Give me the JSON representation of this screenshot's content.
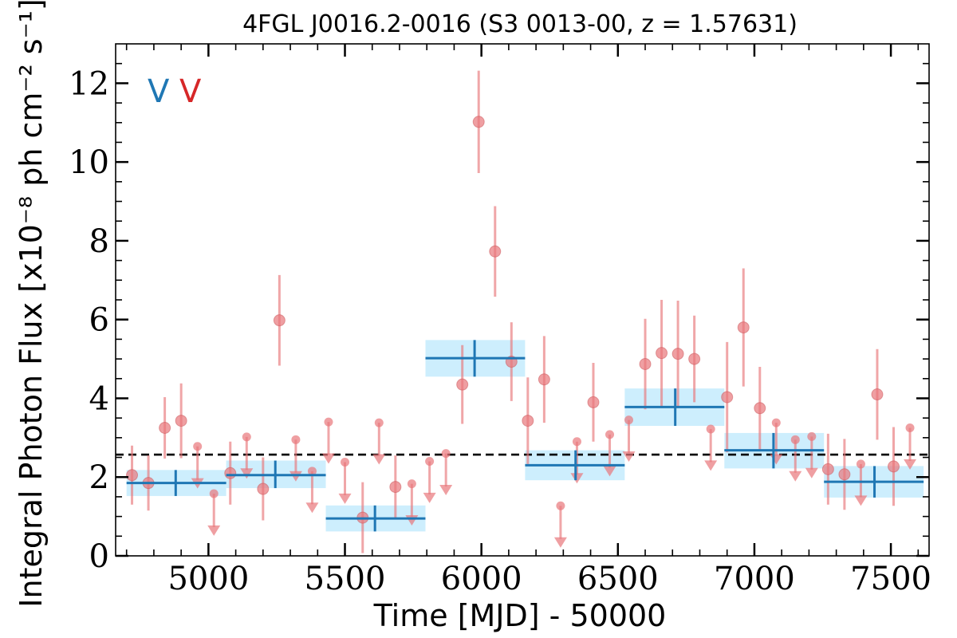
{
  "chart_data": {
    "type": "scatter",
    "title": "4FGL J0016.2-0016 (S3 0013-00, z = 1.57631)",
    "xlabel": "Time [MJD] - 50000",
    "ylabel": "Integral Photon Flux [x10⁻⁸ ph cm⁻² s⁻¹]",
    "xlim": [
      4660,
      7640
    ],
    "ylim": [
      0,
      13
    ],
    "xticks": [
      5000,
      5500,
      6000,
      6500,
      7000,
      7500
    ],
    "yticks": [
      0,
      2,
      4,
      6,
      8,
      10,
      12
    ],
    "grid": false,
    "mean_flux": 2.57,
    "colors": {
      "bins": "#1f77b4",
      "bins_band": "#cdeefd",
      "points": "#e8767a",
      "mean": "#000000"
    },
    "legend_markers": [
      {
        "text": "V",
        "color": "#1f77b4"
      },
      {
        "text": "V",
        "color": "#d62728"
      }
    ],
    "series": [
      {
        "name": "",
        "kind": "binned",
        "bins": [
          {
            "x0": 4700,
            "x1": 5065,
            "x": 4880,
            "y": 1.85,
            "ylo": 1.52,
            "yhi": 2.18
          },
          {
            "x0": 5065,
            "x1": 5430,
            "x": 5245,
            "y": 2.05,
            "ylo": 1.72,
            "yhi": 2.42
          },
          {
            "x0": 5430,
            "x1": 5795,
            "x": 5610,
            "y": 0.95,
            "ylo": 0.62,
            "yhi": 1.28
          },
          {
            "x0": 5795,
            "x1": 6160,
            "x": 5975,
            "y": 5.02,
            "ylo": 4.55,
            "yhi": 5.48
          },
          {
            "x0": 6160,
            "x1": 6525,
            "x": 6345,
            "y": 2.3,
            "ylo": 1.92,
            "yhi": 2.68
          },
          {
            "x0": 6525,
            "x1": 6890,
            "x": 6710,
            "y": 3.78,
            "ylo": 3.3,
            "yhi": 4.25
          },
          {
            "x0": 6890,
            "x1": 7255,
            "x": 7070,
            "y": 2.68,
            "ylo": 2.22,
            "yhi": 3.12
          },
          {
            "x0": 7255,
            "x1": 7620,
            "x": 7440,
            "y": 1.88,
            "ylo": 1.48,
            "yhi": 2.28
          }
        ]
      },
      {
        "name": "",
        "kind": "points",
        "detections": [
          {
            "x": 4720,
            "y": 2.05,
            "err": 0.75
          },
          {
            "x": 4780,
            "y": 1.85,
            "err": 0.7
          },
          {
            "x": 4840,
            "y": 3.25,
            "err": 0.78
          },
          {
            "x": 4900,
            "y": 3.43,
            "err": 0.95
          },
          {
            "x": 5080,
            "y": 2.1,
            "err": 0.8
          },
          {
            "x": 5200,
            "y": 1.7,
            "err": 0.8
          },
          {
            "x": 5260,
            "y": 5.98,
            "err": 1.15
          },
          {
            "x": 5565,
            "y": 0.97,
            "err": 0.9
          },
          {
            "x": 5685,
            "y": 1.75,
            "err": 0.8
          },
          {
            "x": 5930,
            "y": 4.35,
            "err": 1.0
          },
          {
            "x": 5990,
            "y": 11.02,
            "err": 1.3
          },
          {
            "x": 6050,
            "y": 7.73,
            "err": 1.15
          },
          {
            "x": 6110,
            "y": 4.93,
            "err": 1.0
          },
          {
            "x": 6170,
            "y": 3.43,
            "err": 1.1
          },
          {
            "x": 6230,
            "y": 4.48,
            "err": 1.1
          },
          {
            "x": 6410,
            "y": 3.9,
            "err": 1.0
          },
          {
            "x": 6600,
            "y": 4.87,
            "err": 1.15
          },
          {
            "x": 6660,
            "y": 5.15,
            "err": 1.35
          },
          {
            "x": 6720,
            "y": 5.13,
            "err": 1.35
          },
          {
            "x": 6780,
            "y": 5.0,
            "err": 1.1
          },
          {
            "x": 6900,
            "y": 4.03,
            "err": 1.4
          },
          {
            "x": 6960,
            "y": 5.8,
            "err": 1.5
          },
          {
            "x": 7020,
            "y": 3.75,
            "err": 1.05
          },
          {
            "x": 7270,
            "y": 2.2,
            "err": 0.9
          },
          {
            "x": 7330,
            "y": 2.07,
            "err": 0.9
          },
          {
            "x": 7450,
            "y": 4.1,
            "err": 1.15
          },
          {
            "x": 7510,
            "y": 2.27,
            "err": 1.0
          }
        ],
        "upper_limits": [
          {
            "x": 4960,
            "y": 2.78,
            "floor": 1.85
          },
          {
            "x": 5020,
            "y": 1.58,
            "floor": 0.65
          },
          {
            "x": 5140,
            "y": 3.02,
            "floor": 2.1
          },
          {
            "x": 5320,
            "y": 2.95,
            "floor": 2.03
          },
          {
            "x": 5380,
            "y": 2.15,
            "floor": 1.23
          },
          {
            "x": 5440,
            "y": 3.4,
            "floor": 2.48
          },
          {
            "x": 5500,
            "y": 2.38,
            "floor": 1.46
          },
          {
            "x": 5625,
            "y": 3.38,
            "floor": 2.46
          },
          {
            "x": 5745,
            "y": 1.83,
            "floor": 0.91
          },
          {
            "x": 5810,
            "y": 2.4,
            "floor": 1.48
          },
          {
            "x": 5870,
            "y": 2.6,
            "floor": 1.68
          },
          {
            "x": 6290,
            "y": 1.27,
            "floor": 0.35
          },
          {
            "x": 6350,
            "y": 2.9,
            "floor": 1.98
          },
          {
            "x": 6470,
            "y": 3.08,
            "floor": 2.16
          },
          {
            "x": 6540,
            "y": 3.45,
            "floor": 2.53
          },
          {
            "x": 6840,
            "y": 3.22,
            "floor": 2.3
          },
          {
            "x": 7080,
            "y": 3.38,
            "floor": 2.46
          },
          {
            "x": 7150,
            "y": 2.95,
            "floor": 2.03
          },
          {
            "x": 7210,
            "y": 3.03,
            "floor": 2.11
          },
          {
            "x": 7390,
            "y": 2.33,
            "floor": 1.41
          },
          {
            "x": 7570,
            "y": 3.25,
            "floor": 2.33
          }
        ]
      }
    ]
  }
}
